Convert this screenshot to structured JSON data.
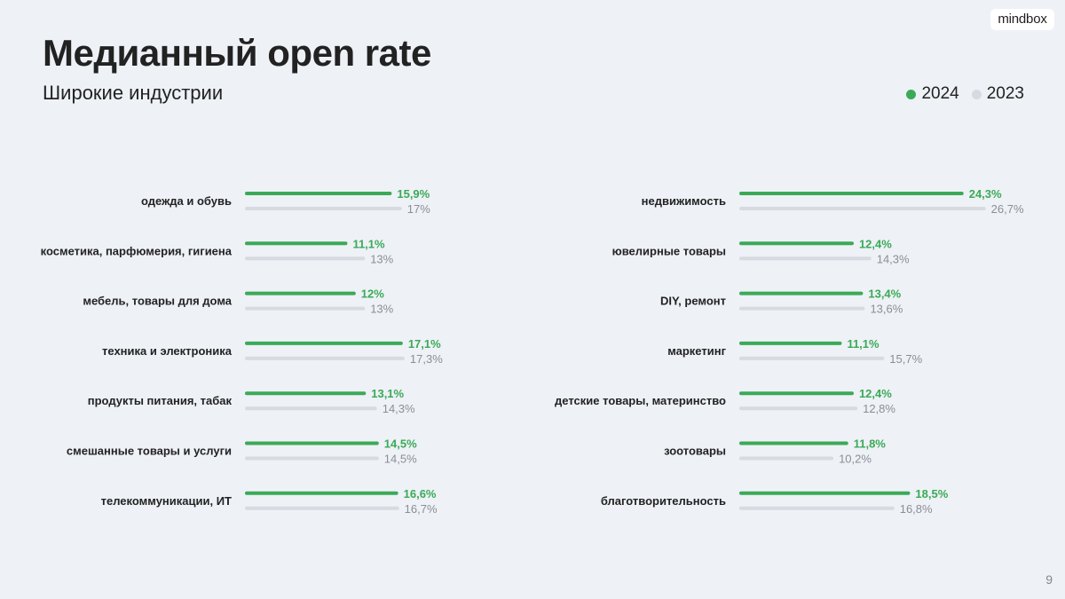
{
  "title": "Медианный open rate",
  "subtitle": "Широкие индустрии",
  "logo_text": "mindbox",
  "page_number": "9",
  "legend": [
    {
      "label": "2024",
      "color": "#3aaa57"
    },
    {
      "label": "2023",
      "color": "#d7dbe1"
    }
  ],
  "colors": {
    "series_2024": "#3aaa57",
    "series_2023": "#d7dbe1",
    "label_2024": "#3aaa57",
    "label_2023": "#8a8f96"
  },
  "chart_data": {
    "type": "bar",
    "orientation": "horizontal",
    "title": "Медианный open rate",
    "subtitle": "Широкие индустрии",
    "unit": "%",
    "legend_position": "top-right",
    "grid": false,
    "series_names": [
      "2024",
      "2023"
    ],
    "panels": [
      {
        "categories": [
          "одежда и обувь",
          "косметика, парфюмерия, гигиена",
          "мебель, товары для дома",
          "техника и электроника",
          "продукты питания, табак",
          "смешанные товары и услуги",
          "телекоммуникации, ИТ"
        ],
        "series": [
          {
            "name": "2024",
            "values": [
              15.9,
              11.1,
              12,
              17.1,
              13.1,
              14.5,
              16.6
            ],
            "labels": [
              "15,9%",
              "11,1%",
              "12%",
              "17,1%",
              "13,1%",
              "14,5%",
              "16,6%"
            ]
          },
          {
            "name": "2023",
            "values": [
              17,
              13,
              13,
              17.3,
              14.3,
              14.5,
              16.7
            ],
            "labels": [
              "17%",
              "13%",
              "13%",
              "17,3%",
              "14,3%",
              "14,5%",
              "16,7%"
            ]
          }
        ]
      },
      {
        "categories": [
          "недвижимость",
          "ювелирные товары",
          "DIY, ремонт",
          "маркетинг",
          "детские товары, материнство",
          "зоотовары",
          "благотворительность"
        ],
        "series": [
          {
            "name": "2024",
            "values": [
              24.3,
              12.4,
              13.4,
              11.1,
              12.4,
              11.8,
              18.5
            ],
            "labels": [
              "24,3%",
              "12,4%",
              "13,4%",
              "11,1%",
              "12,4%",
              "11,8%",
              "18,5%"
            ]
          },
          {
            "name": "2023",
            "values": [
              26.7,
              14.3,
              13.6,
              15.7,
              12.8,
              10.2,
              16.8
            ],
            "labels": [
              "26,7%",
              "14,3%",
              "13,6%",
              "15,7%",
              "12,8%",
              "10,2%",
              "16,8%"
            ]
          }
        ]
      }
    ]
  }
}
